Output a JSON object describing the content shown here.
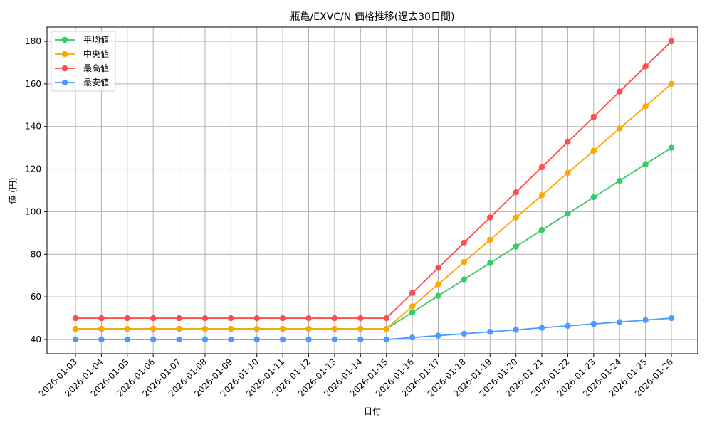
{
  "chart_data": {
    "type": "line",
    "title": "瓶亀/EXVC/N 価格推移(過去30日間)",
    "xlabel": "日付",
    "ylabel": "値 (円)",
    "ylim": [
      33,
      187
    ],
    "yticks": [
      40,
      60,
      80,
      100,
      120,
      140,
      160,
      180
    ],
    "grid": true,
    "legend_position": "upper left",
    "x": [
      "2026-01-03",
      "2026-01-04",
      "2026-01-05",
      "2026-01-06",
      "2026-01-07",
      "2026-01-08",
      "2026-01-09",
      "2026-01-10",
      "2026-01-11",
      "2026-01-12",
      "2026-01-13",
      "2026-01-14",
      "2026-01-15",
      "2026-01-16",
      "2026-01-17",
      "2026-01-18",
      "2026-01-19",
      "2026-01-20",
      "2026-01-21",
      "2026-01-22",
      "2026-01-23",
      "2026-01-24",
      "2026-01-25",
      "2026-01-26"
    ],
    "series": [
      {
        "name": "平均値",
        "color": "#33cc66",
        "values": [
          45,
          45,
          45,
          45,
          45,
          45,
          45,
          45,
          45,
          45,
          45,
          45,
          45,
          52.7,
          60.5,
          68.2,
          75.9,
          83.6,
          91.4,
          99.1,
          106.8,
          114.5,
          122.3,
          130
        ]
      },
      {
        "name": "中央値",
        "color": "#ffa500",
        "values": [
          45,
          45,
          45,
          45,
          45,
          45,
          45,
          45,
          45,
          45,
          45,
          45,
          45,
          55.5,
          65.9,
          76.4,
          86.8,
          97.3,
          107.7,
          118.2,
          128.6,
          139.1,
          149.5,
          160
        ]
      },
      {
        "name": "最高値",
        "color": "#ff4c4c",
        "values": [
          50,
          50,
          50,
          50,
          50,
          50,
          50,
          50,
          50,
          50,
          50,
          50,
          50,
          61.8,
          73.6,
          85.5,
          97.3,
          109.1,
          120.9,
          132.7,
          144.5,
          156.4,
          168.2,
          180
        ]
      },
      {
        "name": "最安値",
        "color": "#4c9aff",
        "values": [
          40,
          40,
          40,
          40,
          40,
          40,
          40,
          40,
          40,
          40,
          40,
          40,
          40,
          40.9,
          41.8,
          42.7,
          43.6,
          44.5,
          45.5,
          46.4,
          47.3,
          48.2,
          49.1,
          50
        ]
      }
    ]
  }
}
